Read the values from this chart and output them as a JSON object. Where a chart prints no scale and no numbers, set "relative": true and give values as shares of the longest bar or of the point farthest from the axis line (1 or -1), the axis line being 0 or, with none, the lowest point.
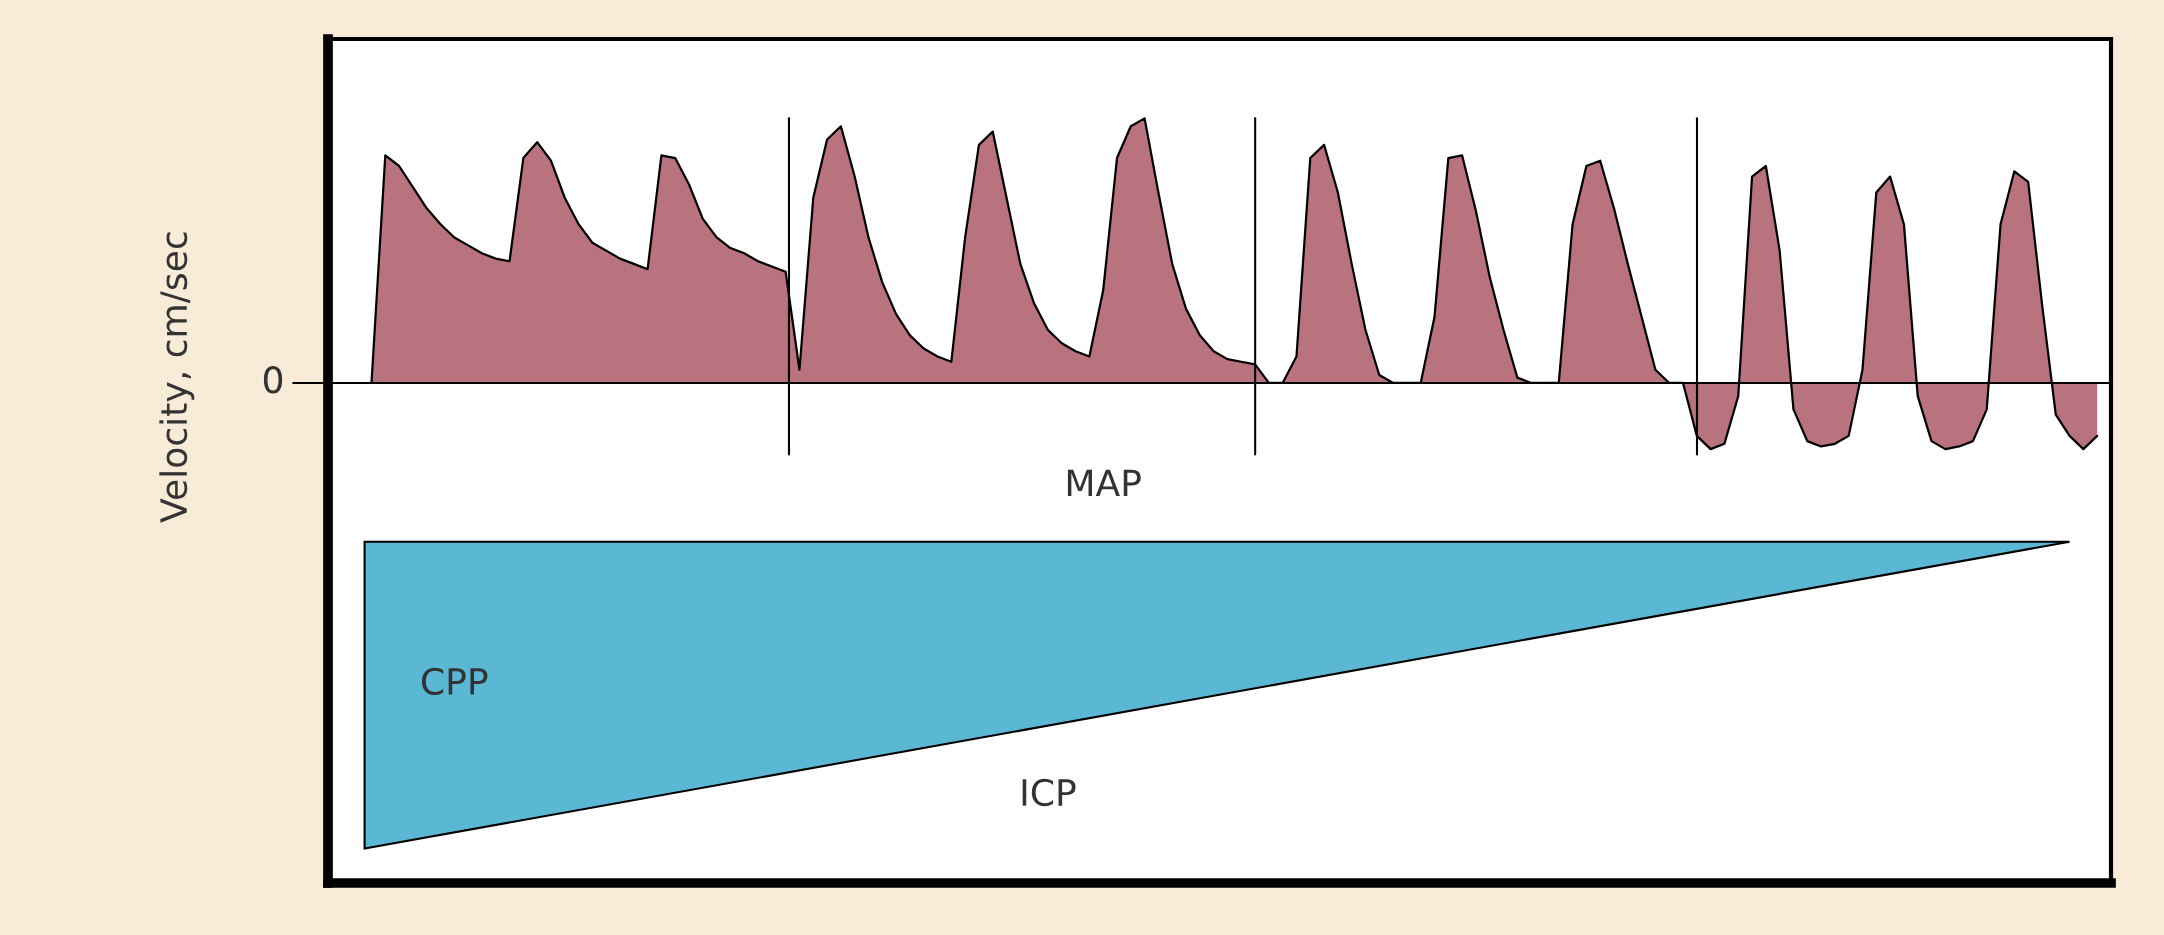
{
  "chart_data": {
    "type": "area",
    "relative": true,
    "ylabel": "Velocity, cm/sec",
    "categories": [
      null,
      null,
      null,
      null,
      null,
      null,
      null,
      null,
      null,
      null,
      null,
      null,
      null,
      null,
      null,
      null,
      null,
      null,
      null,
      null,
      null,
      null,
      null,
      null,
      null,
      null,
      null,
      null,
      null,
      null,
      null,
      null,
      null,
      null,
      null,
      null,
      null,
      null,
      null,
      null,
      null,
      null,
      null,
      null,
      null,
      null,
      null,
      null,
      null,
      null,
      null,
      null,
      null,
      null,
      null,
      null,
      null,
      null,
      null,
      null,
      null,
      null,
      null,
      null,
      null,
      null,
      null,
      null,
      null,
      null,
      null,
      null,
      null,
      null,
      null,
      null,
      null,
      null,
      null,
      null,
      null,
      null,
      null,
      null,
      null,
      null,
      null,
      null,
      null,
      null,
      null,
      null,
      null,
      null,
      null,
      null,
      null,
      null,
      null,
      null,
      null,
      null,
      null,
      null,
      null,
      null,
      null,
      null,
      null,
      null,
      null,
      null,
      null,
      null,
      null,
      null,
      null,
      null,
      null,
      null,
      null,
      null,
      null,
      null,
      null,
      null
    ],
    "series": [
      {
        "color": "#b8737e",
        "values": [
          0,
          0.86,
          0.82,
          0.74,
          0.66,
          0.6,
          0.55,
          0.52,
          0.49,
          0.47,
          0.46,
          0.85,
          0.91,
          0.84,
          0.7,
          0.6,
          0.53,
          0.5,
          0.47,
          0.45,
          0.43,
          0.86,
          0.85,
          0.75,
          0.62,
          0.55,
          0.51,
          0.49,
          0.46,
          0.44,
          0.42,
          0.05,
          0.7,
          0.92,
          0.97,
          0.78,
          0.55,
          0.38,
          0.26,
          0.18,
          0.13,
          0.1,
          0.08,
          0.55,
          0.9,
          0.95,
          0.7,
          0.45,
          0.3,
          0.2,
          0.15,
          0.12,
          0.1,
          0.35,
          0.85,
          0.97,
          1.0,
          0.72,
          0.45,
          0.28,
          0.18,
          0.12,
          0.09,
          0.08,
          0.07,
          0,
          0,
          0.1,
          0.85,
          0.9,
          0.72,
          0.45,
          0.2,
          0.03,
          0,
          0,
          0,
          0.25,
          0.85,
          0.86,
          0.65,
          0.4,
          0.2,
          0.02,
          0,
          0,
          0,
          0.6,
          0.82,
          0.84,
          0.66,
          0.45,
          0.25,
          0.05,
          0,
          0,
          -0.2,
          -0.25,
          -0.23,
          -0.05,
          0.78,
          0.82,
          0.5,
          -0.1,
          -0.22,
          -0.24,
          -0.23,
          -0.2,
          0.05,
          0.72,
          0.78,
          0.6,
          -0.05,
          -0.22,
          -0.25,
          -0.24,
          -0.22,
          -0.1,
          0.6,
          0.8,
          0.76,
          0.3,
          -0.12,
          -0.2,
          -0.25,
          -0.2
        ]
      }
    ],
    "ref_lines": [
      {
        "axis": "y",
        "value": 0,
        "label": "0"
      }
    ],
    "annotations": [
      "MAP",
      "CPP",
      "ICP"
    ]
  }
}
